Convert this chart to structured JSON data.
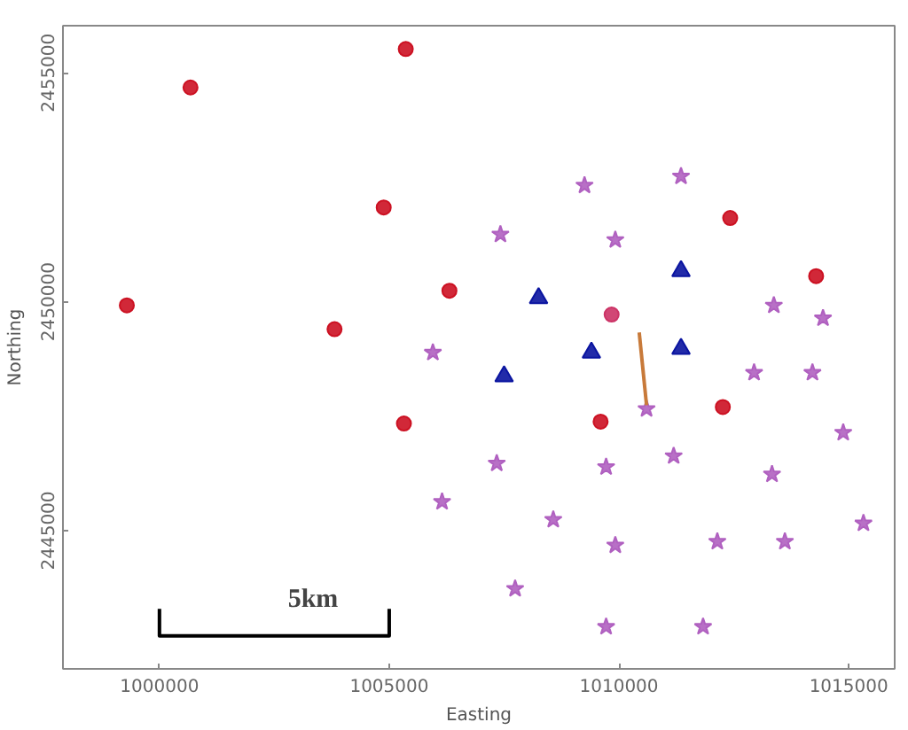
{
  "chart_data": {
    "type": "scatter",
    "xlabel": "Easting",
    "ylabel": "Northing",
    "xlim": [
      997900,
      1016000
    ],
    "ylim": [
      2441980,
      2456030
    ],
    "xticks": [
      1000000,
      1005000,
      1010000,
      1015000
    ],
    "yticks": [
      2445000,
      2450000,
      2455000
    ],
    "grid": false,
    "series": [
      {
        "color": "#cc1122",
        "marker": "circle",
        "x": [
          1000675,
          1005360,
          1004880,
          999290,
          1003810,
          1006310,
          1012420,
          1014290,
          1005320,
          1009600,
          1012260
        ],
        "values": [
          2454680,
          2455520,
          2452060,
          2449920,
          2449400,
          2450240,
          2451830,
          2450560,
          2447340,
          2447380,
          2447700
        ]
      },
      {
        "color": "#cc3366",
        "marker": "circle",
        "x": [
          1009840
        ],
        "values": [
          2449720
        ]
      },
      {
        "color": "#0a14a0",
        "marker": "triangle",
        "x": [
          1008250,
          1011350,
          1007500,
          1009400,
          1011350
        ],
        "values": [
          2450080,
          2450670,
          2448370,
          2448890,
          2448970
        ]
      },
      {
        "color": "#b060c0",
        "marker": "star",
        "x": [
          1009250,
          1011350,
          1007420,
          1009920,
          1005950,
          1013370,
          1014440,
          1012940,
          1014210,
          1010600,
          1014880,
          1007340,
          1009720,
          1011190,
          1013330,
          1006150,
          1008570,
          1009920,
          1012140,
          1013610,
          1015320,
          1007740,
          1009720,
          1011830
        ],
        "values": [
          2452540,
          2452740,
          2451470,
          2451350,
          2448890,
          2449920,
          2449640,
          2448450,
          2448450,
          2447660,
          2447140,
          2446470,
          2446390,
          2446630,
          2446230,
          2445630,
          2445240,
          2444680,
          2444760,
          2444760,
          2445160,
          2443730,
          2442900,
          2442900
        ]
      },
      {
        "type": "line",
        "color": "#c87a3a",
        "x": [
          1010440,
          1010600
        ],
        "values": [
          2449330,
          2447740
        ]
      },
      {
        "type": "line",
        "color": "#000000",
        "x": [
          1000000,
          1000000,
          1005000,
          1005000
        ],
        "values": [
          2443290,
          2442700,
          2442700,
          2443290
        ]
      }
    ],
    "annotations": [
      "5km"
    ]
  }
}
